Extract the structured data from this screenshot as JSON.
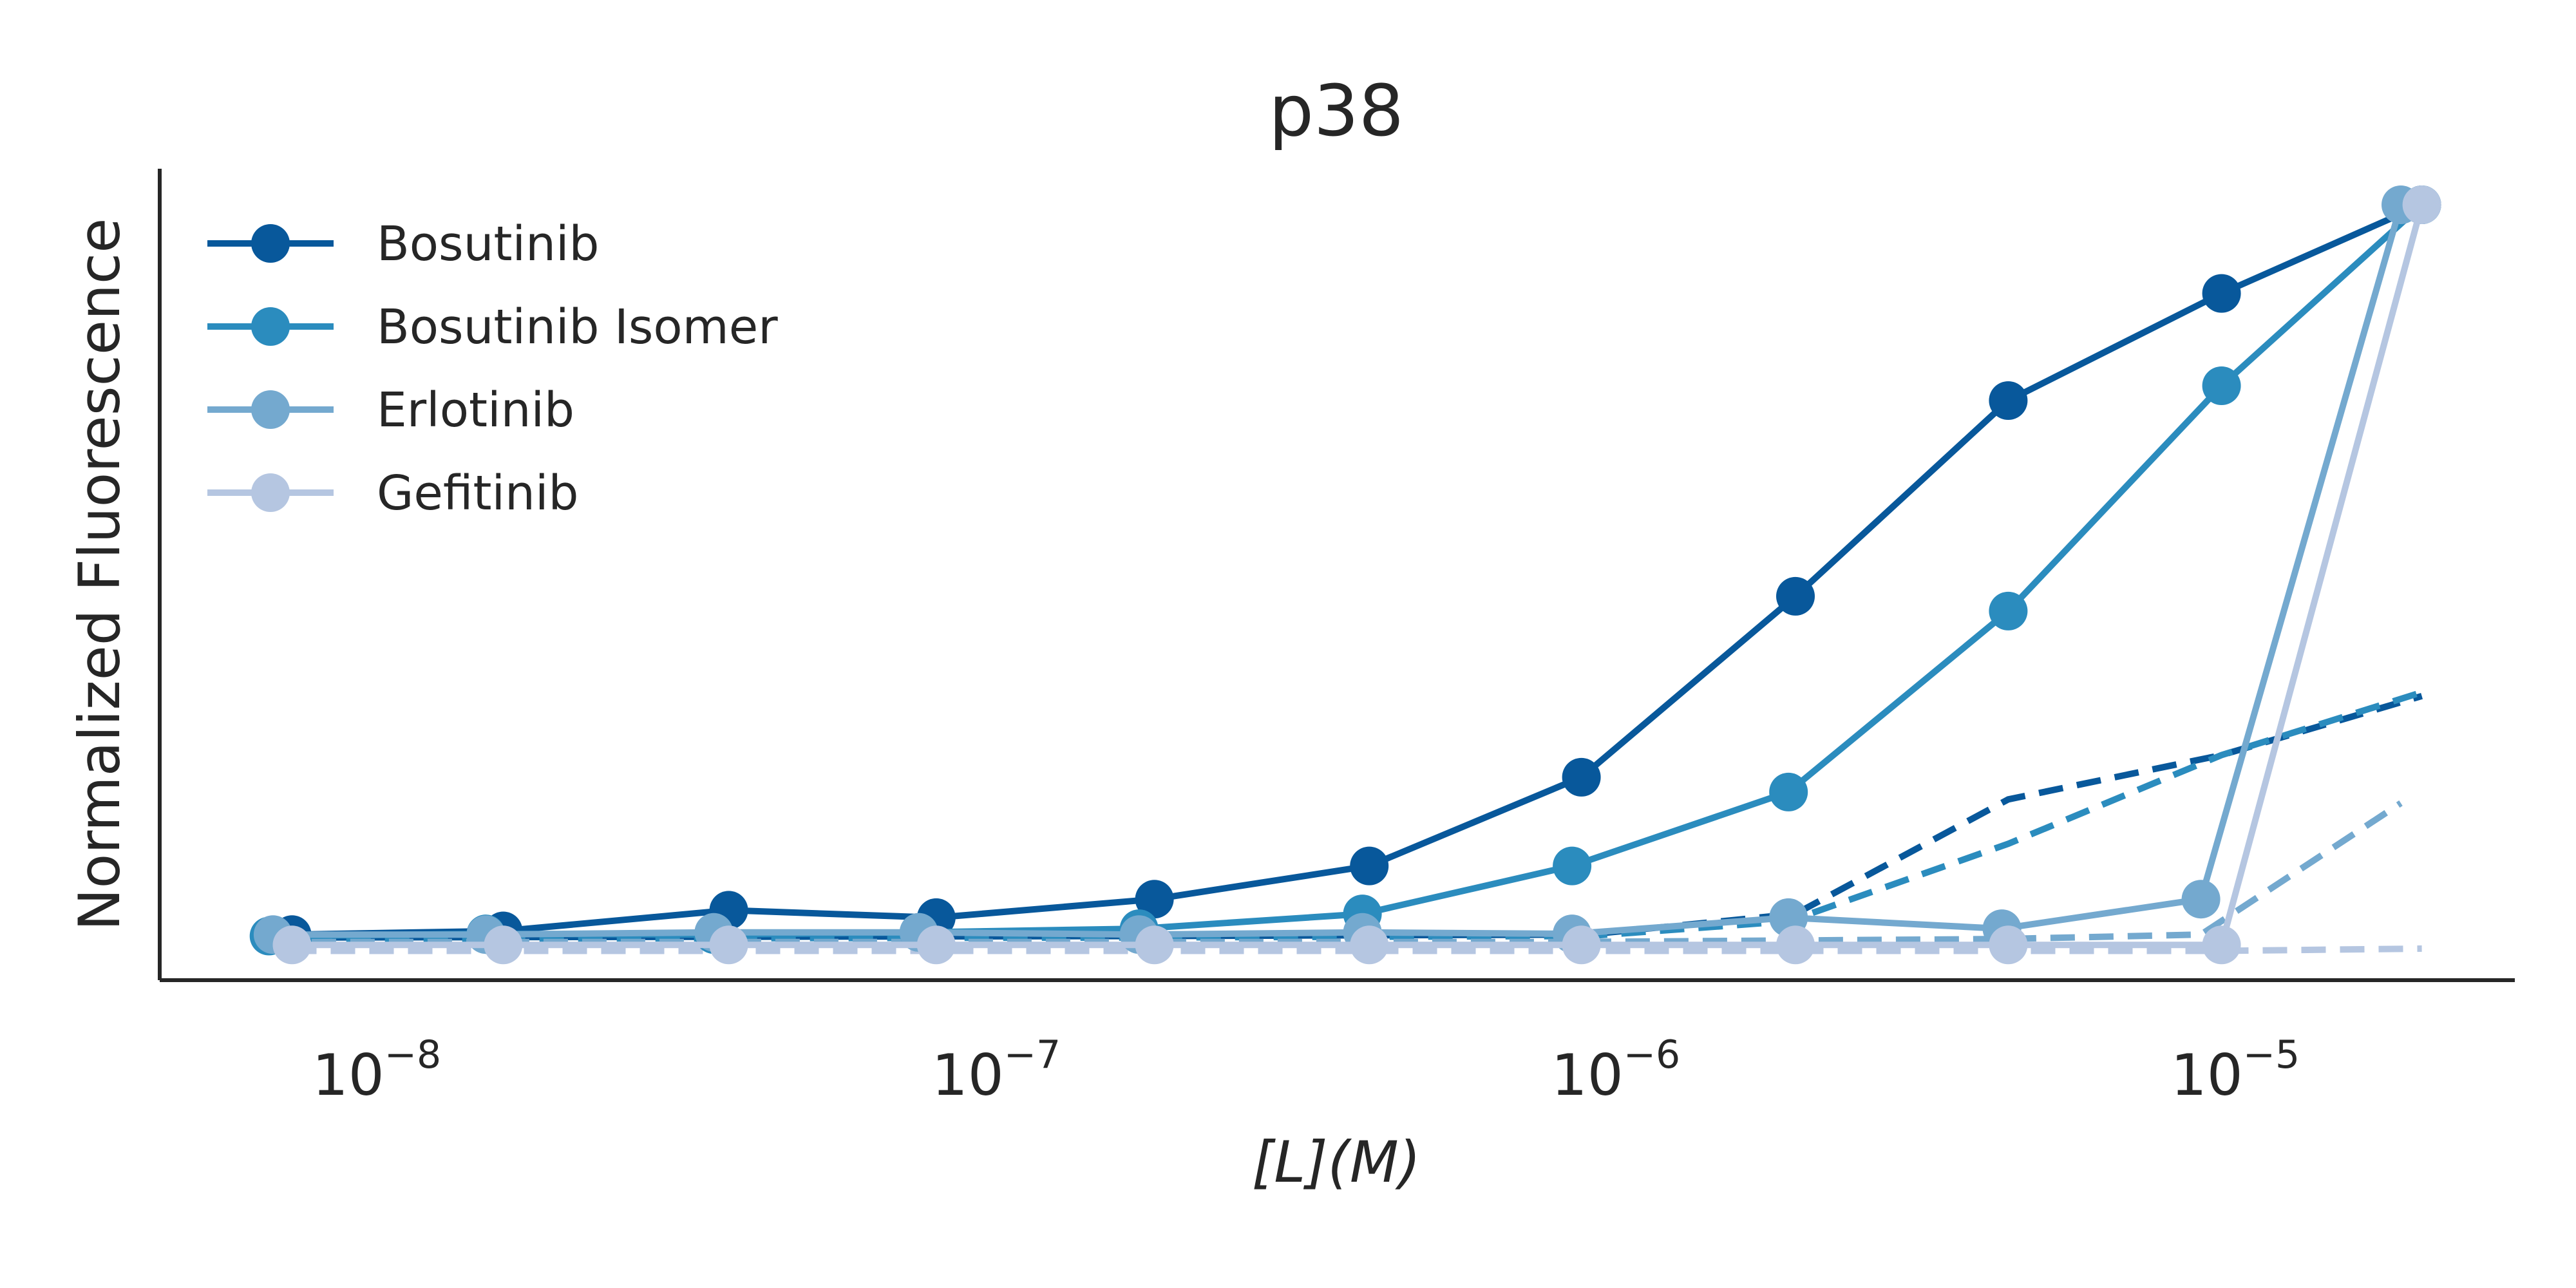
{
  "chart_data": {
    "type": "line",
    "title": "p38",
    "xlabel": "[L](M)",
    "ylabel": "Normalized Fluorescence",
    "x_scale": "log",
    "xlim": [
      5e-09,
      3.5e-05
    ],
    "ylim": [
      0.0,
      1.05
    ],
    "xticks": [
      {
        "value": 1e-08,
        "base": "10",
        "exp": "−8"
      },
      {
        "value": 1e-07,
        "base": "10",
        "exp": "−7"
      },
      {
        "value": 1e-06,
        "base": "10",
        "exp": "−6"
      },
      {
        "value": 1e-05,
        "base": "10",
        "exp": "−5"
      }
    ],
    "yticks_shown": false,
    "grid": false,
    "legend": {
      "position": "top-left"
    },
    "series": [
      {
        "name": "Bosutinib",
        "color": "#08589b",
        "marker": "circle",
        "x": [
          7.3e-09,
          1.6e-08,
          3.7e-08,
          8e-08,
          1.8e-07,
          4e-07,
          8.8e-07,
          1.95e-06,
          4.3e-06,
          9.5e-06,
          2e-05
        ],
        "y": [
          0.012,
          0.017,
          0.045,
          0.035,
          0.06,
          0.105,
          0.225,
          0.47,
          0.735,
          0.88,
          1.0
        ],
        "dashed_x": [
          7.3e-09,
          1.8e-07,
          9e-07,
          1.95e-06,
          4.3e-06,
          9.5e-06,
          2e-05
        ],
        "dashed_y": [
          0.008,
          0.01,
          0.012,
          0.04,
          0.195,
          0.255,
          0.335
        ]
      },
      {
        "name": "Bosutinib Isomer",
        "color": "#2b8cbe",
        "marker": "circle",
        "x": [
          6.7e-09,
          1.5e-08,
          3.5e-08,
          7.5e-08,
          1.7e-07,
          3.9e-07,
          8.5e-07,
          1.9e-06,
          4.3e-06,
          9.5e-06,
          2e-05
        ],
        "y": [
          0.01,
          0.013,
          0.012,
          0.015,
          0.02,
          0.04,
          0.105,
          0.205,
          0.45,
          0.755,
          1.0
        ],
        "dashed_x": [
          6.7e-09,
          1.7e-07,
          9e-07,
          1.9e-06,
          4.3e-06,
          9.5e-06,
          2e-05
        ],
        "dashed_y": [
          0.006,
          0.008,
          0.01,
          0.03,
          0.135,
          0.255,
          0.34
        ]
      },
      {
        "name": "Erlotinib",
        "color": "#74a9cf",
        "marker": "circle",
        "x": [
          6.8e-09,
          1.5e-08,
          3.5e-08,
          7.5e-08,
          1.7e-07,
          3.9e-07,
          8.5e-07,
          1.9e-06,
          4.2e-06,
          8.8e-06,
          1.85e-05
        ],
        "y": [
          0.012,
          0.012,
          0.015,
          0.015,
          0.012,
          0.015,
          0.013,
          0.035,
          0.02,
          0.06,
          1.0
        ],
        "dashed_x": [
          6.8e-09,
          1.7e-07,
          8.5e-07,
          1.9e-06,
          4.2e-06,
          8.8e-06,
          1.85e-05
        ],
        "dashed_y": [
          0.002,
          0.002,
          0.002,
          0.004,
          0.006,
          0.012,
          0.19
        ]
      },
      {
        "name": "Gefitinib",
        "color": "#b5c6e1",
        "marker": "circle",
        "x": [
          7.3e-09,
          1.6e-08,
          3.7e-08,
          8e-08,
          1.8e-07,
          4e-07,
          8.8e-07,
          1.95e-06,
          4.3e-06,
          9.5e-06,
          2e-05
        ],
        "y": [
          -0.002,
          -0.002,
          -0.002,
          -0.002,
          -0.002,
          -0.002,
          -0.002,
          -0.002,
          -0.002,
          -0.002,
          1.0
        ],
        "dashed_x": [
          7.3e-09,
          1.8e-07,
          9e-07,
          4.3e-06,
          9.5e-06,
          2e-05
        ],
        "dashed_y": [
          -0.01,
          -0.01,
          -0.01,
          -0.01,
          -0.01,
          -0.007
        ]
      }
    ]
  }
}
